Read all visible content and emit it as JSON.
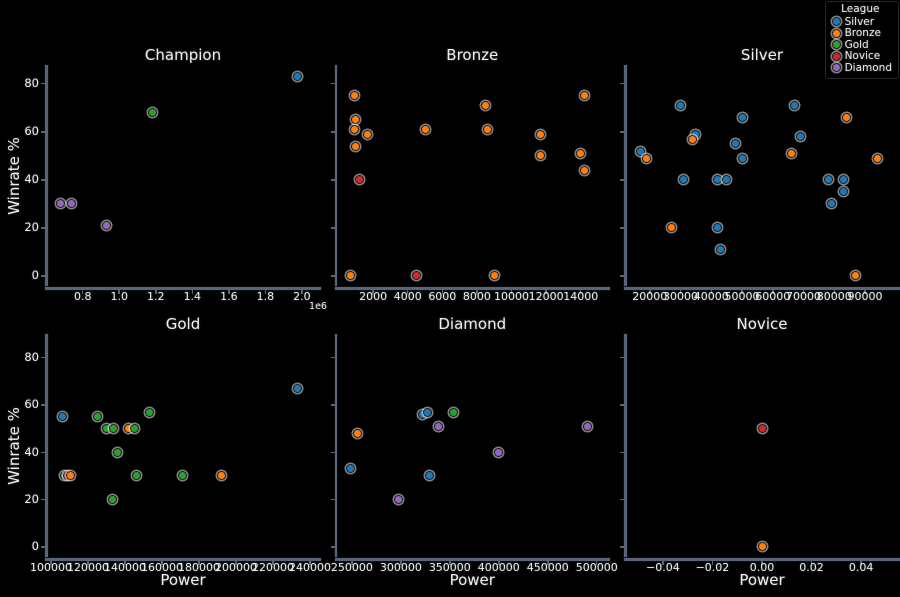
{
  "figure": {
    "ylabel": "Winrate %",
    "xlabel": "Power",
    "background": "#000000",
    "text_color": "#edeff3",
    "spine_color": "#5a6478"
  },
  "legend": {
    "title": "League",
    "entries": [
      {
        "label": "Silver",
        "color": "#1f77b4"
      },
      {
        "label": "Bronze",
        "color": "#ff7f0e"
      },
      {
        "label": "Gold",
        "color": "#2ca02c"
      },
      {
        "label": "Novice",
        "color": "#d62728"
      },
      {
        "label": "Diamond",
        "color": "#9467bd"
      }
    ]
  },
  "chart_data": [
    {
      "type": "scatter",
      "title": "Champion",
      "row": 0,
      "col": 0,
      "ylabel": "Winrate %",
      "xlabel": "",
      "xlim": [
        610000,
        2088000
      ],
      "ylim": [
        -4.6,
        87.8
      ],
      "xticks": {
        "values": [
          800000,
          1000000,
          1200000,
          1400000,
          1600000,
          1800000,
          2000000
        ],
        "labels": [
          "0.8",
          "1.0",
          "1.2",
          "1.4",
          "1.6",
          "1.8",
          "2.0"
        ],
        "offset": "1e6"
      },
      "yticks": {
        "values": [
          0,
          20,
          40,
          60,
          80
        ],
        "labels": [
          "0",
          "20",
          "40",
          "60",
          "80"
        ]
      },
      "points": [
        {
          "x": 680000,
          "y": 30,
          "league": "Diamond"
        },
        {
          "x": 740000,
          "y": 30,
          "league": "Diamond"
        },
        {
          "x": 930000,
          "y": 21,
          "league": "Diamond"
        },
        {
          "x": 1180000,
          "y": 68,
          "league": "Gold"
        },
        {
          "x": 1975000,
          "y": 83,
          "league": "Silver"
        }
      ]
    },
    {
      "type": "scatter",
      "title": "Bronze",
      "row": 0,
      "col": 1,
      "ylabel": "",
      "xlabel": "",
      "xlim": [
        -60,
        15520
      ],
      "ylim": [
        -4.6,
        87.8
      ],
      "xticks": {
        "values": [
          2000,
          4000,
          6000,
          8000,
          10000,
          12000,
          14000
        ],
        "labels": [
          "2000",
          "4000",
          "6000",
          "8000",
          "10000",
          "12000",
          "14000"
        ]
      },
      "yticks": {
        "values": [
          0,
          20,
          40,
          60,
          80
        ],
        "labels": [
          "0",
          "20",
          "40",
          "60",
          "80"
        ]
      },
      "points": [
        {
          "x": 900,
          "y": 75,
          "league": "Bronze"
        },
        {
          "x": 14200,
          "y": 75,
          "league": "Bronze"
        },
        {
          "x": 8500,
          "y": 71,
          "league": "Bronze"
        },
        {
          "x": 1000,
          "y": 65,
          "league": "Bronze"
        },
        {
          "x": 900,
          "y": 61,
          "league": "Bronze"
        },
        {
          "x": 1650,
          "y": 59,
          "league": "Bronze"
        },
        {
          "x": 5000,
          "y": 61,
          "league": "Bronze"
        },
        {
          "x": 8600,
          "y": 61,
          "league": "Bronze"
        },
        {
          "x": 11700,
          "y": 59,
          "league": "Bronze"
        },
        {
          "x": 1000,
          "y": 54,
          "league": "Bronze"
        },
        {
          "x": 14000,
          "y": 51,
          "league": "Bronze"
        },
        {
          "x": 11700,
          "y": 50,
          "league": "Bronze"
        },
        {
          "x": 14200,
          "y": 44,
          "league": "Bronze"
        },
        {
          "x": 1200,
          "y": 40,
          "league": "Novice"
        },
        {
          "x": 700,
          "y": 0,
          "league": "Bronze"
        },
        {
          "x": 4500,
          "y": 0,
          "league": "Novice"
        },
        {
          "x": 9000,
          "y": 0,
          "league": "Bronze"
        }
      ]
    },
    {
      "type": "scatter",
      "title": "Silver",
      "row": 0,
      "col": 2,
      "ylabel": "",
      "xlabel": "",
      "xlim": [
        12600,
        100400
      ],
      "ylim": [
        -4.6,
        87.8
      ],
      "xticks": {
        "values": [
          20000,
          30000,
          40000,
          50000,
          60000,
          70000,
          80000,
          90000
        ],
        "labels": [
          "20000",
          "30000",
          "40000",
          "50000",
          "60000",
          "70000",
          "80000",
          "90000"
        ]
      },
      "yticks": {
        "values": [
          0,
          20,
          40,
          60,
          80
        ],
        "labels": [
          "0",
          "20",
          "40",
          "60",
          "80"
        ]
      },
      "points": [
        {
          "x": 30000,
          "y": 71,
          "league": "Silver"
        },
        {
          "x": 67000,
          "y": 71,
          "league": "Silver"
        },
        {
          "x": 50000,
          "y": 66,
          "league": "Silver"
        },
        {
          "x": 84000,
          "y": 66,
          "league": "Bronze"
        },
        {
          "x": 35000,
          "y": 59,
          "league": "Silver"
        },
        {
          "x": 34000,
          "y": 57,
          "league": "Bronze"
        },
        {
          "x": 69000,
          "y": 58,
          "league": "Silver"
        },
        {
          "x": 48000,
          "y": 55,
          "league": "Silver"
        },
        {
          "x": 17000,
          "y": 52,
          "league": "Silver"
        },
        {
          "x": 19000,
          "y": 49,
          "league": "Bronze"
        },
        {
          "x": 66000,
          "y": 51,
          "league": "Bronze"
        },
        {
          "x": 94000,
          "y": 49,
          "league": "Bronze"
        },
        {
          "x": 50000,
          "y": 49,
          "league": "Silver"
        },
        {
          "x": 31000,
          "y": 40,
          "league": "Silver"
        },
        {
          "x": 42000,
          "y": 40,
          "league": "Silver"
        },
        {
          "x": 45000,
          "y": 40,
          "league": "Silver"
        },
        {
          "x": 78000,
          "y": 40,
          "league": "Silver"
        },
        {
          "x": 83000,
          "y": 40,
          "league": "Silver"
        },
        {
          "x": 83000,
          "y": 35,
          "league": "Silver"
        },
        {
          "x": 79000,
          "y": 30,
          "league": "Silver"
        },
        {
          "x": 27000,
          "y": 20,
          "league": "Bronze"
        },
        {
          "x": 42000,
          "y": 20,
          "league": "Silver"
        },
        {
          "x": 43000,
          "y": 11,
          "league": "Silver"
        },
        {
          "x": 87000,
          "y": 0,
          "league": "Bronze"
        }
      ]
    },
    {
      "type": "scatter",
      "title": "Gold",
      "row": 1,
      "col": 0,
      "ylabel": "Winrate %",
      "xlabel": "Power",
      "xlim": [
        98400,
        244300
      ],
      "ylim": [
        -4.7,
        90
      ],
      "xticks": {
        "values": [
          100000,
          120000,
          140000,
          160000,
          180000,
          200000,
          220000,
          240000
        ],
        "labels": [
          "100000",
          "120000",
          "140000",
          "160000",
          "180000",
          "200000",
          "220000",
          "240000"
        ]
      },
      "yticks": {
        "values": [
          0,
          20,
          40,
          60,
          80
        ],
        "labels": [
          "0",
          "20",
          "40",
          "60",
          "80"
        ]
      },
      "points": [
        {
          "x": 106000,
          "y": 55,
          "league": "Silver"
        },
        {
          "x": 125000,
          "y": 55,
          "league": "Gold"
        },
        {
          "x": 130000,
          "y": 50,
          "league": "Gold"
        },
        {
          "x": 134000,
          "y": 50,
          "league": "Gold"
        },
        {
          "x": 142000,
          "y": 50,
          "league": "Bronze"
        },
        {
          "x": 145000,
          "y": 50,
          "league": "Gold"
        },
        {
          "x": 153000,
          "y": 57,
          "league": "Gold"
        },
        {
          "x": 136000,
          "y": 40,
          "league": "Gold"
        },
        {
          "x": 107500,
          "y": 30,
          "league": "Gold"
        },
        {
          "x": 109000,
          "y": 30,
          "league": "Novice"
        },
        {
          "x": 110500,
          "y": 30,
          "league": "Bronze"
        },
        {
          "x": 146000,
          "y": 30,
          "league": "Gold"
        },
        {
          "x": 171000,
          "y": 30,
          "league": "Gold"
        },
        {
          "x": 192000,
          "y": 30,
          "league": "Bronze"
        },
        {
          "x": 133000,
          "y": 20,
          "league": "Gold"
        },
        {
          "x": 233000,
          "y": 67,
          "league": "Silver"
        }
      ]
    },
    {
      "type": "scatter",
      "title": "Diamond",
      "row": 1,
      "col": 1,
      "ylabel": "",
      "xlabel": "Power",
      "xlim": [
        235300,
        510500
      ],
      "ylim": [
        -4.7,
        90
      ],
      "xticks": {
        "values": [
          250000,
          300000,
          350000,
          400000,
          450000,
          500000
        ],
        "labels": [
          "250000",
          "300000",
          "350000",
          "400000",
          "450000",
          "500000"
        ]
      },
      "yticks": {
        "values": [
          0,
          20,
          40,
          60,
          80
        ],
        "labels": [
          "0",
          "20",
          "40",
          "60",
          "80"
        ]
      },
      "points": [
        {
          "x": 256000,
          "y": 48,
          "league": "Bronze"
        },
        {
          "x": 249000,
          "y": 33,
          "league": "Silver"
        },
        {
          "x": 322000,
          "y": 56,
          "league": "Silver"
        },
        {
          "x": 327000,
          "y": 57,
          "league": "Silver"
        },
        {
          "x": 354000,
          "y": 57,
          "league": "Gold"
        },
        {
          "x": 338000,
          "y": 51,
          "league": "Diamond"
        },
        {
          "x": 491000,
          "y": 51,
          "league": "Diamond"
        },
        {
          "x": 400000,
          "y": 40,
          "league": "Diamond"
        },
        {
          "x": 329000,
          "y": 30,
          "league": "Silver"
        },
        {
          "x": 298000,
          "y": 20,
          "league": "Diamond"
        }
      ]
    },
    {
      "type": "scatter",
      "title": "Novice",
      "row": 1,
      "col": 2,
      "ylabel": "",
      "xlabel": "Power",
      "xlim": [
        -0.0545,
        0.0545
      ],
      "ylim": [
        -4.7,
        90
      ],
      "xticks": {
        "values": [
          -0.04,
          -0.02,
          0,
          0.02,
          0.04
        ],
        "labels": [
          "−0.04",
          "−0.02",
          "0.00",
          "0.02",
          "0.04"
        ]
      },
      "yticks": {
        "values": [
          0,
          20,
          40,
          60,
          80
        ],
        "labels": [
          "0",
          "20",
          "40",
          "60",
          "80"
        ]
      },
      "points": [
        {
          "x": 0,
          "y": 50,
          "league": "Novice"
        },
        {
          "x": 0,
          "y": 0,
          "league": "Bronze"
        }
      ]
    }
  ]
}
